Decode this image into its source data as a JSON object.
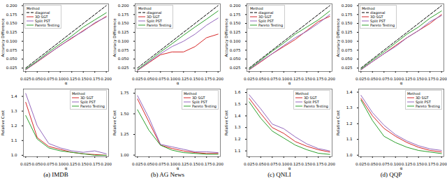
{
  "chart_data": [
    {
      "type": "line",
      "x_label": "α",
      "y_label": "Accuracy Difference",
      "legend": "upper left",
      "legend_title": "Method",
      "grid": false,
      "x": [
        0.025,
        0.05,
        0.075,
        0.1,
        0.125,
        0.15,
        0.175,
        0.2
      ],
      "xlim": [
        0.02,
        0.205
      ],
      "xticks": [
        0.025,
        {
          "value": 0.05,
          "label": "0.050"
        },
        0.075,
        {
          "value": 0.1,
          "label": "0.100"
        },
        0.125,
        {
          "value": 0.15,
          "label": "0.150"
        },
        0.175,
        {
          "value": 0.2,
          "label": "0.200"
        }
      ],
      "ylim": [
        0.015,
        0.205
      ],
      "yticks": [
        0.025,
        {
          "value": 0.05,
          "label": "0.050"
        },
        0.075,
        {
          "value": 0.1,
          "label": "0.100"
        },
        0.125,
        {
          "value": 0.15,
          "label": "0.150"
        },
        0.175,
        {
          "value": 0.2,
          "label": "0.200"
        }
      ],
      "series": [
        {
          "name": "diagonal",
          "color": "#000000",
          "line_style": "dashed",
          "values": [
            0.025,
            0.05,
            0.075,
            0.1,
            0.125,
            0.15,
            0.175,
            0.2
          ]
        },
        {
          "name": "3D SGT",
          "color": "#d62728",
          "line_style": "solid",
          "values": [
            0.02,
            0.042,
            0.065,
            0.088,
            0.108,
            0.13,
            0.15,
            0.17
          ]
        },
        {
          "name": "Split PST",
          "color": "#9467bd",
          "line_style": "solid",
          "values": [
            0.02,
            0.043,
            0.066,
            0.087,
            0.11,
            0.128,
            0.152,
            0.168
          ]
        },
        {
          "name": "Pareto Testing",
          "color": "#2ca02c",
          "line_style": "solid",
          "values": [
            0.022,
            0.045,
            0.07,
            0.093,
            0.115,
            0.14,
            0.16,
            0.18
          ]
        }
      ]
    },
    {
      "type": "line",
      "x_label": "α",
      "y_label": "Accuracy Difference",
      "legend": "upper left",
      "legend_title": "Method",
      "grid": false,
      "x": [
        0.025,
        0.05,
        0.075,
        0.1,
        0.125,
        0.15,
        0.175,
        0.2
      ],
      "xlim": [
        0.02,
        0.205
      ],
      "xticks": [
        0.025,
        {
          "value": 0.05,
          "label": "0.050"
        },
        0.075,
        {
          "value": 0.1,
          "label": "0.100"
        },
        0.125,
        {
          "value": 0.15,
          "label": "0.150"
        },
        0.175,
        {
          "value": 0.2,
          "label": "0.200"
        }
      ],
      "ylim": [
        0.015,
        0.205
      ],
      "yticks": [
        0.025,
        {
          "value": 0.05,
          "label": "0.050"
        },
        0.075,
        {
          "value": 0.1,
          "label": "0.100"
        },
        0.125,
        {
          "value": 0.15,
          "label": "0.150"
        },
        0.175,
        {
          "value": 0.2,
          "label": "0.200"
        }
      ],
      "series": [
        {
          "name": "diagonal",
          "color": "#000000",
          "line_style": "dashed",
          "values": [
            0.025,
            0.05,
            0.075,
            0.1,
            0.125,
            0.15,
            0.175,
            0.2
          ]
        },
        {
          "name": "3D SGT",
          "color": "#d62728",
          "line_style": "solid",
          "values": [
            0.018,
            0.04,
            0.062,
            0.07,
            0.07,
            0.085,
            0.11,
            0.12
          ]
        },
        {
          "name": "Split PST",
          "color": "#9467bd",
          "line_style": "solid",
          "values": [
            0.018,
            0.042,
            0.065,
            0.085,
            0.1,
            0.12,
            0.145,
            0.165
          ]
        },
        {
          "name": "Pareto Testing",
          "color": "#2ca02c",
          "line_style": "solid",
          "values": [
            0.02,
            0.045,
            0.07,
            0.093,
            0.117,
            0.14,
            0.162,
            0.185
          ]
        }
      ]
    },
    {
      "type": "line",
      "x_label": "α",
      "y_label": "Accuracy Difference",
      "legend": "upper left",
      "legend_title": "Method",
      "grid": false,
      "x": [
        0.025,
        0.05,
        0.075,
        0.1,
        0.125,
        0.15,
        0.175,
        0.2
      ],
      "xlim": [
        0.02,
        0.205
      ],
      "xticks": [
        0.025,
        {
          "value": 0.05,
          "label": "0.050"
        },
        0.075,
        {
          "value": 0.1,
          "label": "0.100"
        },
        0.125,
        {
          "value": 0.15,
          "label": "0.150"
        },
        0.175,
        {
          "value": 0.2,
          "label": "0.200"
        }
      ],
      "ylim": [
        0.015,
        0.205
      ],
      "yticks": [
        0.025,
        {
          "value": 0.05,
          "label": "0.050"
        },
        0.075,
        {
          "value": 0.1,
          "label": "0.100"
        },
        0.125,
        {
          "value": 0.15,
          "label": "0.150"
        },
        0.175,
        {
          "value": 0.2,
          "label": "0.200"
        }
      ],
      "series": [
        {
          "name": "diagonal",
          "color": "#000000",
          "line_style": "dashed",
          "values": [
            0.025,
            0.05,
            0.075,
            0.1,
            0.125,
            0.15,
            0.175,
            0.2
          ]
        },
        {
          "name": "3D SGT",
          "color": "#d62728",
          "line_style": "solid",
          "values": [
            0.02,
            0.042,
            0.065,
            0.085,
            0.105,
            0.13,
            0.155,
            0.17
          ]
        },
        {
          "name": "Split PST",
          "color": "#9467bd",
          "line_style": "solid",
          "values": [
            0.02,
            0.044,
            0.065,
            0.088,
            0.11,
            0.128,
            0.15,
            0.175
          ]
        },
        {
          "name": "Pareto Testing",
          "color": "#2ca02c",
          "line_style": "solid",
          "values": [
            0.022,
            0.047,
            0.072,
            0.095,
            0.12,
            0.14,
            0.16,
            0.185
          ]
        }
      ]
    },
    {
      "type": "line",
      "x_label": "α",
      "y_label": "Accuracy Difference",
      "legend": "upper left",
      "legend_title": "Method",
      "grid": false,
      "x": [
        0.025,
        0.05,
        0.075,
        0.1,
        0.125,
        0.15,
        0.175,
        0.2
      ],
      "xlim": [
        0.02,
        0.205
      ],
      "xticks": [
        0.025,
        {
          "value": 0.05,
          "label": "0.050"
        },
        0.075,
        {
          "value": 0.1,
          "label": "0.100"
        },
        0.125,
        {
          "value": 0.15,
          "label": "0.150"
        },
        0.175,
        {
          "value": 0.2,
          "label": "0.200"
        }
      ],
      "ylim": [
        0.015,
        0.205
      ],
      "yticks": [
        0.025,
        {
          "value": 0.05,
          "label": "0.050"
        },
        0.075,
        {
          "value": 0.1,
          "label": "0.100"
        },
        0.125,
        {
          "value": 0.15,
          "label": "0.150"
        },
        0.175,
        {
          "value": 0.2,
          "label": "0.200"
        }
      ],
      "series": [
        {
          "name": "diagonal",
          "color": "#000000",
          "line_style": "dashed",
          "values": [
            0.025,
            0.05,
            0.075,
            0.1,
            0.125,
            0.15,
            0.175,
            0.2
          ]
        },
        {
          "name": "3D SGT",
          "color": "#d62728",
          "line_style": "solid",
          "values": [
            0.02,
            0.043,
            0.065,
            0.088,
            0.11,
            0.13,
            0.15,
            0.175
          ]
        },
        {
          "name": "Split PST",
          "color": "#9467bd",
          "line_style": "solid",
          "values": [
            0.02,
            0.043,
            0.065,
            0.085,
            0.11,
            0.13,
            0.155,
            0.172
          ]
        },
        {
          "name": "Pareto Testing",
          "color": "#2ca02c",
          "line_style": "solid",
          "values": [
            0.022,
            0.047,
            0.07,
            0.095,
            0.12,
            0.14,
            0.165,
            0.185
          ]
        }
      ]
    },
    {
      "type": "line",
      "x_label": "α",
      "y_label": "Relative Cost",
      "legend": "upper right",
      "legend_title": "Method",
      "grid": false,
      "caption": "(a) IMDB",
      "x": [
        0.025,
        0.05,
        0.075,
        0.1,
        0.125,
        0.15,
        0.175,
        0.2
      ],
      "xlim": [
        0.02,
        0.205
      ],
      "xticks": [
        0.025,
        {
          "value": 0.05,
          "label": "0.050"
        },
        0.075,
        {
          "value": 0.1,
          "label": "0.100"
        },
        0.125,
        {
          "value": 0.15,
          "label": "0.150"
        },
        0.175,
        {
          "value": 0.2,
          "label": "0.200"
        }
      ],
      "ylim": [
        0.99,
        1.45
      ],
      "yticks": [
        {
          "value": 1,
          "label": "1.0"
        },
        1.1,
        1.2,
        1.3,
        1.4
      ],
      "series": [
        {
          "name": "3D SGT",
          "color": "#d62728",
          "line_style": "solid",
          "values": [
            1.36,
            1.12,
            1.06,
            1.04,
            1.02,
            1.01,
            1.005,
            1.0
          ]
        },
        {
          "name": "Split PST",
          "color": "#9467bd",
          "line_style": "solid",
          "values": [
            1.42,
            1.2,
            1.08,
            1.05,
            1.03,
            1.02,
            1.03,
            1.01
          ]
        },
        {
          "name": "Pareto Testing",
          "color": "#2ca02c",
          "line_style": "solid",
          "values": [
            1.27,
            1.11,
            1.05,
            1.03,
            1.02,
            1.01,
            1.0,
            1.0
          ]
        }
      ]
    },
    {
      "type": "line",
      "x_label": "α",
      "y_label": "Relative Cost",
      "legend": "upper right",
      "legend_title": "Method",
      "grid": false,
      "caption": "(b) AG News",
      "x": [
        0.025,
        0.05,
        0.075,
        0.1,
        0.125,
        0.15,
        0.175,
        0.2
      ],
      "xlim": [
        0.02,
        0.205
      ],
      "xticks": [
        0.025,
        {
          "value": 0.05,
          "label": "0.050"
        },
        0.075,
        {
          "value": 0.1,
          "label": "0.100"
        },
        0.125,
        {
          "value": 0.15,
          "label": "0.150"
        },
        0.175,
        {
          "value": 0.2,
          "label": "0.200"
        }
      ],
      "ylim": [
        0.98,
        1.8
      ],
      "yticks": [
        {
          "value": 1,
          "label": "1.00"
        },
        1.25,
        {
          "value": 1.5,
          "label": "1.50"
        },
        1.75
      ],
      "series": [
        {
          "name": "3D SGT",
          "color": "#d62728",
          "line_style": "solid",
          "values": [
            1.68,
            1.4,
            1.12,
            1.08,
            1.05,
            1.03,
            1.02,
            1.02
          ]
        },
        {
          "name": "Split PST",
          "color": "#9467bd",
          "line_style": "solid",
          "values": [
            1.72,
            1.45,
            1.13,
            1.1,
            1.07,
            1.04,
            1.04,
            1.03
          ]
        },
        {
          "name": "Pareto Testing",
          "color": "#2ca02c",
          "line_style": "solid",
          "values": [
            1.55,
            1.3,
            1.12,
            1.06,
            1.03,
            1.02,
            1.01,
            1.01
          ]
        }
      ]
    },
    {
      "type": "line",
      "x_label": "α",
      "y_label": "Relative Cost",
      "legend": "upper right",
      "legend_title": "Method",
      "grid": false,
      "caption": "(c) QNLI",
      "x": [
        0.025,
        0.05,
        0.075,
        0.1,
        0.125,
        0.15,
        0.175,
        0.2
      ],
      "xlim": [
        0.02,
        0.205
      ],
      "xticks": [
        0.025,
        {
          "value": 0.05,
          "label": "0.050"
        },
        0.075,
        {
          "value": 0.1,
          "label": "0.100"
        },
        0.125,
        {
          "value": 0.15,
          "label": "0.150"
        },
        0.175,
        {
          "value": 0.2,
          "label": "0.200"
        }
      ],
      "ylim": [
        1.05,
        1.63
      ],
      "yticks": [
        1.1,
        1.2,
        1.3,
        1.4,
        1.5,
        1.6
      ],
      "series": [
        {
          "name": "3D SGT",
          "color": "#d62728",
          "line_style": "solid",
          "values": [
            1.55,
            1.42,
            1.3,
            1.25,
            1.18,
            1.14,
            1.11,
            1.09
          ]
        },
        {
          "name": "Split PST",
          "color": "#9467bd",
          "line_style": "solid",
          "values": [
            1.58,
            1.46,
            1.33,
            1.29,
            1.22,
            1.16,
            1.12,
            1.1
          ]
        },
        {
          "name": "Pareto Testing",
          "color": "#2ca02c",
          "line_style": "solid",
          "values": [
            1.52,
            1.38,
            1.27,
            1.21,
            1.15,
            1.11,
            1.08,
            1.07
          ]
        }
      ]
    },
    {
      "type": "line",
      "x_label": "α",
      "y_label": "Relative Cost",
      "legend": "upper right",
      "legend_title": "Method",
      "grid": false,
      "caption": "(d) QQP",
      "x": [
        0.025,
        0.05,
        0.075,
        0.1,
        0.125,
        0.15,
        0.175,
        0.2
      ],
      "xlim": [
        0.02,
        0.205
      ],
      "xticks": [
        0.025,
        {
          "value": 0.05,
          "label": "0.050"
        },
        0.075,
        {
          "value": 0.1,
          "label": "0.100"
        },
        0.125,
        {
          "value": 0.15,
          "label": "0.150"
        },
        0.175,
        {
          "value": 0.2,
          "label": "0.200"
        }
      ],
      "ylim": [
        0.99,
        1.42
      ],
      "yticks": [
        {
          "value": 1,
          "label": "1.0"
        },
        1.1,
        1.2,
        1.3,
        1.4
      ],
      "series": [
        {
          "name": "3D SGT",
          "color": "#d62728",
          "line_style": "solid",
          "values": [
            1.36,
            1.25,
            1.17,
            1.12,
            1.08,
            1.05,
            1.03,
            1.02
          ]
        },
        {
          "name": "Split PST",
          "color": "#9467bd",
          "line_style": "solid",
          "values": [
            1.38,
            1.27,
            1.19,
            1.13,
            1.09,
            1.06,
            1.04,
            1.03
          ]
        },
        {
          "name": "Pareto Testing",
          "color": "#2ca02c",
          "line_style": "solid",
          "values": [
            1.35,
            1.22,
            1.12,
            1.08,
            1.05,
            1.03,
            1.02,
            1.01
          ]
        }
      ]
    }
  ]
}
